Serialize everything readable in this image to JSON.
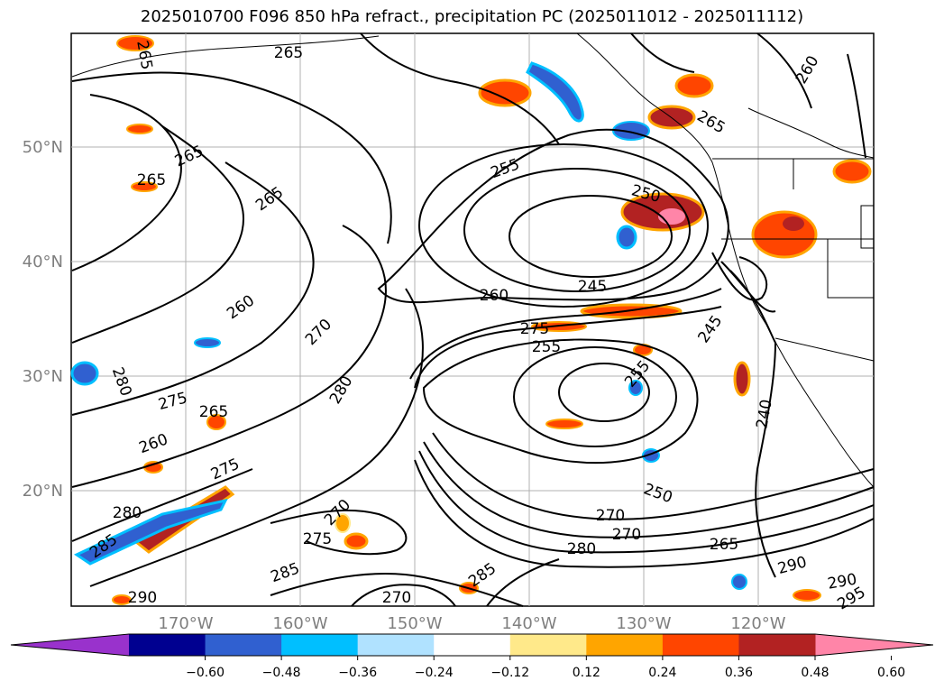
{
  "title": "2025010700 F096 850 hPa refract., precipitation PC (2025011012 - 2025011112)",
  "lat_labels": [
    "50°N",
    "40°N",
    "30°N",
    "20°N"
  ],
  "lon_labels": [
    "170°W",
    "160°W",
    "150°W",
    "140°W",
    "130°W",
    "120°W"
  ],
  "contour_labels": [
    "265",
    "265",
    "265",
    "265",
    "265",
    "265",
    "260",
    "255",
    "250",
    "245",
    "260",
    "275",
    "255",
    "245",
    "255",
    "240",
    "260",
    "270",
    "280",
    "275",
    "265",
    "260",
    "275",
    "280",
    "280",
    "285",
    "275",
    "285",
    "285",
    "290",
    "270",
    "250",
    "270",
    "270",
    "280",
    "265",
    "290",
    "290",
    "295",
    "270"
  ],
  "colorbar": {
    "colors": [
      "#9932cc",
      "#000090",
      "#3060d0",
      "#00bfff",
      "#b0e2ff",
      "#ffffff",
      "#ffe98a",
      "#ffa500",
      "#ff4500",
      "#b22222",
      "#ff85a8"
    ],
    "ticks": [
      "−0.60",
      "−0.48",
      "−0.36",
      "−0.24",
      "−0.12",
      "0.12",
      "0.24",
      "0.36",
      "0.48",
      "0.60"
    ]
  }
}
